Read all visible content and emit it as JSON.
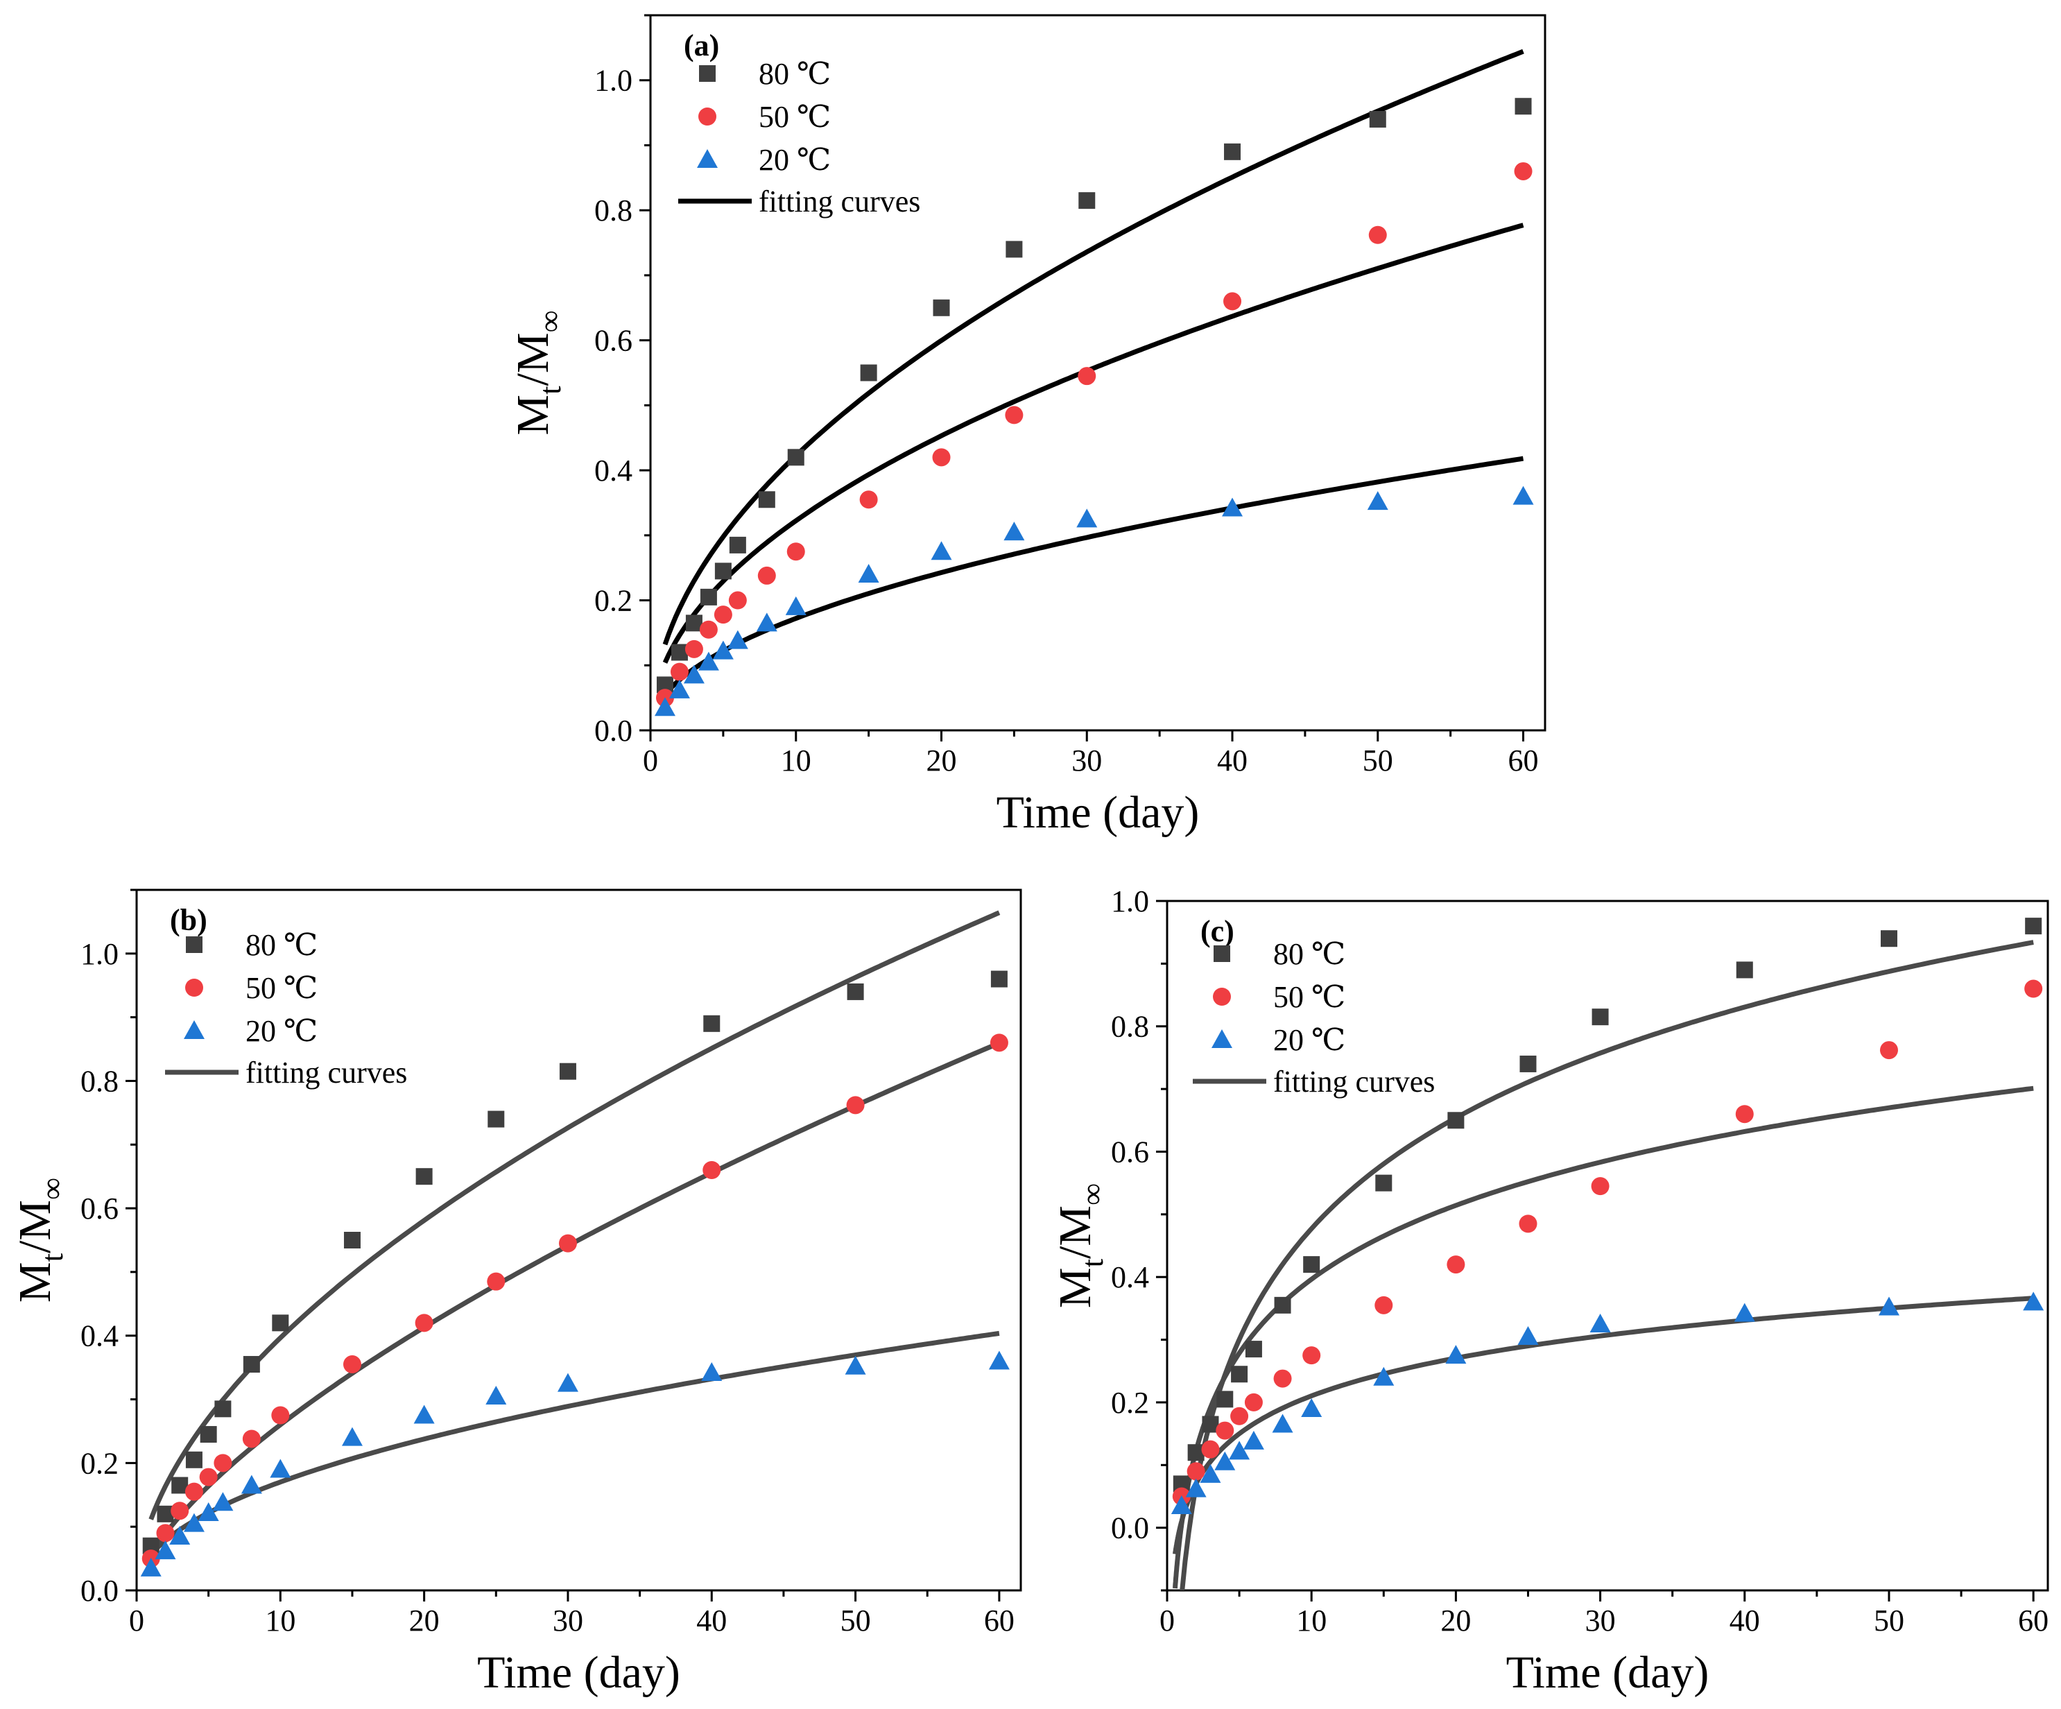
{
  "chart_data": [
    {
      "id": "a",
      "type": "scatter",
      "panel_label": "(a)",
      "xlabel": "Time (day)",
      "ylabel_main": "M",
      "ylabel_sub": "t",
      "ylabel_rest": "/M",
      "ylabel_sub2": "∞",
      "xlim": [
        0,
        61.5
      ],
      "ylim": [
        0,
        1.1
      ],
      "xticks": [
        0,
        10,
        20,
        30,
        40,
        50,
        60
      ],
      "xtick_labels": [
        "0",
        "10",
        "20",
        "30",
        "40",
        "50",
        "60"
      ],
      "yticks": [
        0,
        0.2,
        0.4,
        0.6,
        0.8,
        1.0
      ],
      "ytick_labels": [
        "0.0",
        "0.2",
        "0.4",
        "0.6",
        "0.8",
        "1.0"
      ],
      "curve_color": "#000000",
      "legend_fit_label": "fitting curves",
      "series": [
        {
          "name": "80 ℃",
          "marker": "square",
          "color": "#3f3f3f",
          "x": [
            1,
            2,
            3,
            4,
            5,
            6,
            8,
            10,
            15,
            20,
            25,
            30,
            40,
            50,
            60
          ],
          "y": [
            0.07,
            0.12,
            0.165,
            0.205,
            0.245,
            0.285,
            0.355,
            0.42,
            0.55,
            0.65,
            0.74,
            0.815,
            0.89,
            0.94,
            0.96
          ]
        },
        {
          "name": "50 ℃",
          "marker": "circle",
          "color": "#ef3e42",
          "x": [
            1,
            2,
            3,
            4,
            5,
            6,
            8,
            10,
            15,
            20,
            25,
            30,
            40,
            50,
            60
          ],
          "y": [
            0.05,
            0.09,
            0.125,
            0.155,
            0.178,
            0.2,
            0.238,
            0.275,
            0.355,
            0.42,
            0.485,
            0.545,
            0.66,
            0.762,
            0.86
          ]
        },
        {
          "name": "20 ℃",
          "marker": "triangle",
          "color": "#1f77d4",
          "x": [
            1,
            2,
            3,
            4,
            5,
            6,
            8,
            10,
            15,
            20,
            25,
            30,
            40,
            50,
            60
          ],
          "y": [
            0.035,
            0.062,
            0.085,
            0.105,
            0.122,
            0.138,
            0.165,
            0.19,
            0.24,
            0.275,
            0.305,
            0.325,
            0.342,
            0.352,
            0.36
          ]
        }
      ],
      "fits": [
        {
          "name": "80 ℃",
          "model": "power",
          "a": 0.1321,
          "n": 0.505
        },
        {
          "name": "50 ℃",
          "model": "power",
          "a": 0.1041,
          "n": 0.491
        },
        {
          "name": "20 ℃",
          "model": "power",
          "a": 0.0551,
          "n": 0.495
        }
      ]
    },
    {
      "id": "b",
      "type": "scatter",
      "panel_label": "(b)",
      "xlabel": "Time (day)",
      "ylabel_main": "M",
      "ylabel_sub": "t",
      "ylabel_rest": "/M",
      "ylabel_sub2": "∞",
      "xlim": [
        0,
        61.5
      ],
      "ylim": [
        0,
        1.1
      ],
      "xticks": [
        0,
        10,
        20,
        30,
        40,
        50,
        60
      ],
      "xtick_labels": [
        "0",
        "10",
        "20",
        "30",
        "40",
        "50",
        "60"
      ],
      "yticks": [
        0,
        0.2,
        0.4,
        0.6,
        0.8,
        1.0
      ],
      "ytick_labels": [
        "0.0",
        "0.2",
        "0.4",
        "0.6",
        "0.8",
        "1.0"
      ],
      "curve_color": "#4a4a4a",
      "legend_fit_label": "fitting curves",
      "series": [
        {
          "name": "80 ℃",
          "marker": "square",
          "color": "#3f3f3f",
          "x": [
            1,
            2,
            3,
            4,
            5,
            6,
            8,
            10,
            15,
            20,
            25,
            30,
            40,
            50,
            60
          ],
          "y": [
            0.07,
            0.12,
            0.165,
            0.205,
            0.245,
            0.285,
            0.355,
            0.42,
            0.55,
            0.65,
            0.74,
            0.815,
            0.89,
            0.94,
            0.96
          ]
        },
        {
          "name": "50 ℃",
          "marker": "circle",
          "color": "#ef3e42",
          "x": [
            1,
            2,
            3,
            4,
            5,
            6,
            8,
            10,
            15,
            20,
            25,
            30,
            40,
            50,
            60
          ],
          "y": [
            0.05,
            0.09,
            0.125,
            0.155,
            0.178,
            0.2,
            0.238,
            0.275,
            0.355,
            0.42,
            0.485,
            0.545,
            0.66,
            0.762,
            0.86
          ]
        },
        {
          "name": "20 ℃",
          "marker": "triangle",
          "color": "#1f77d4",
          "x": [
            1,
            2,
            3,
            4,
            5,
            6,
            8,
            10,
            15,
            20,
            25,
            30,
            40,
            50,
            60
          ],
          "y": [
            0.035,
            0.062,
            0.085,
            0.105,
            0.122,
            0.138,
            0.165,
            0.19,
            0.24,
            0.275,
            0.305,
            0.325,
            0.342,
            0.352,
            0.36
          ]
        }
      ],
      "fits": [
        {
          "name": "80 ℃",
          "model": "power",
          "a": 0.1115,
          "n": 0.551
        },
        {
          "name": "50 ℃",
          "model": "power",
          "a": 0.056,
          "n": 0.667
        },
        {
          "name": "20 ℃",
          "model": "power",
          "a": 0.0561,
          "n": 0.482
        }
      ]
    },
    {
      "id": "c",
      "type": "scatter",
      "panel_label": "(c)",
      "xlabel": "Time (day)",
      "ylabel_main": "M",
      "ylabel_sub": "t",
      "ylabel_rest": "/M",
      "ylabel_sub2": "∞",
      "xlim": [
        0,
        61
      ],
      "ylim": [
        -0.1,
        1.0
      ],
      "xticks": [
        0,
        10,
        20,
        30,
        40,
        50,
        60
      ],
      "xtick_labels": [
        "0",
        "10",
        "20",
        "30",
        "40",
        "50",
        "60"
      ],
      "yticks": [
        0,
        0.2,
        0.4,
        0.6,
        0.8,
        1.0
      ],
      "ytick_labels": [
        "0.0",
        "0.2",
        "0.4",
        "0.6",
        "0.8",
        "1.0"
      ],
      "curve_color": "#4a4a4a",
      "legend_fit_label": "fitting curves",
      "series": [
        {
          "name": "80 ℃",
          "marker": "square",
          "color": "#3f3f3f",
          "x": [
            1,
            2,
            3,
            4,
            5,
            6,
            8,
            10,
            15,
            20,
            25,
            30,
            40,
            50,
            60
          ],
          "y": [
            0.07,
            0.12,
            0.165,
            0.205,
            0.245,
            0.285,
            0.355,
            0.42,
            0.55,
            0.65,
            0.74,
            0.815,
            0.89,
            0.94,
            0.96
          ]
        },
        {
          "name": "50 ℃",
          "marker": "circle",
          "color": "#ef3e42",
          "x": [
            1,
            2,
            3,
            4,
            5,
            6,
            8,
            10,
            15,
            20,
            25,
            30,
            40,
            50,
            60
          ],
          "y": [
            0.05,
            0.09,
            0.125,
            0.155,
            0.178,
            0.2,
            0.238,
            0.275,
            0.355,
            0.42,
            0.485,
            0.545,
            0.66,
            0.762,
            0.86
          ]
        },
        {
          "name": "20 ℃",
          "marker": "triangle",
          "color": "#1f77d4",
          "x": [
            1,
            2,
            3,
            4,
            5,
            6,
            8,
            10,
            15,
            20,
            25,
            30,
            40,
            50,
            60
          ],
          "y": [
            0.035,
            0.062,
            0.085,
            0.105,
            0.122,
            0.138,
            0.165,
            0.19,
            0.24,
            0.275,
            0.305,
            0.325,
            0.342,
            0.352,
            0.36
          ]
        }
      ],
      "fits": [
        {
          "name": "80 ℃",
          "model": "log",
          "a": -0.11,
          "b": 0.255,
          "xmin": 1
        },
        {
          "name": "50 ℃",
          "model": "log",
          "a": 0.005,
          "b": 0.17,
          "xmin": 1
        },
        {
          "name": "20 ℃",
          "model": "log",
          "a": 0.01,
          "b": 0.087,
          "xmin": 1
        }
      ]
    }
  ]
}
